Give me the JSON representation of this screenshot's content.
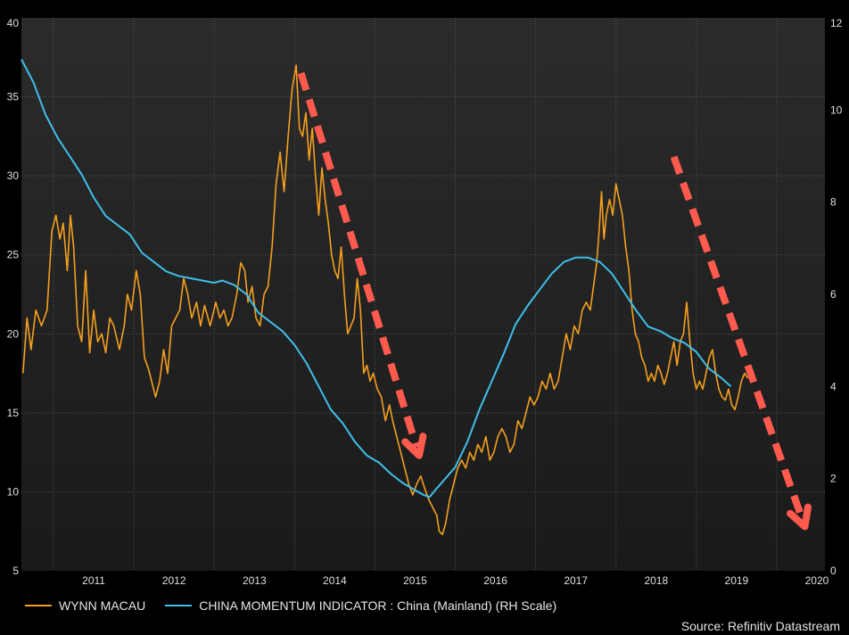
{
  "chart_data": {
    "type": "line",
    "title": "",
    "x_tick_labels": [
      "2011",
      "2012",
      "2013",
      "2014",
      "2015",
      "2016",
      "2017",
      "2018",
      "2019",
      "2020"
    ],
    "x_range": [
      2010.6,
      2020.6
    ],
    "y_left": {
      "range": [
        5,
        40
      ],
      "ticks": [
        "5",
        "10",
        "15",
        "20",
        "25",
        "30",
        "35",
        "40"
      ]
    },
    "y_right": {
      "range": [
        0,
        12
      ],
      "ticks": [
        "0",
        "2",
        "4",
        "6",
        "8",
        "10",
        "12"
      ]
    },
    "grid": true,
    "legend_position": "bottom-left",
    "series": [
      {
        "name": "WYNN MACAU",
        "axis": "left",
        "color": "#f5a01e",
        "points": [
          [
            2010.62,
            17.5
          ],
          [
            2010.67,
            21.0
          ],
          [
            2010.72,
            19.0
          ],
          [
            2010.78,
            21.5
          ],
          [
            2010.85,
            20.5
          ],
          [
            2010.92,
            21.5
          ],
          [
            2010.98,
            26.5
          ],
          [
            2011.03,
            27.5
          ],
          [
            2011.08,
            26.0
          ],
          [
            2011.12,
            27.0
          ],
          [
            2011.17,
            24.0
          ],
          [
            2011.21,
            27.5
          ],
          [
            2011.25,
            25.5
          ],
          [
            2011.3,
            20.5
          ],
          [
            2011.35,
            19.5
          ],
          [
            2011.4,
            24.0
          ],
          [
            2011.45,
            18.8
          ],
          [
            2011.5,
            21.5
          ],
          [
            2011.55,
            19.5
          ],
          [
            2011.6,
            20.0
          ],
          [
            2011.65,
            18.8
          ],
          [
            2011.7,
            21.0
          ],
          [
            2011.75,
            20.5
          ],
          [
            2011.82,
            19.0
          ],
          [
            2011.88,
            20.5
          ],
          [
            2011.92,
            22.5
          ],
          [
            2011.97,
            21.5
          ],
          [
            2012.03,
            24.0
          ],
          [
            2012.08,
            22.5
          ],
          [
            2012.13,
            18.5
          ],
          [
            2012.18,
            17.8
          ],
          [
            2012.22,
            17.0
          ],
          [
            2012.27,
            16.0
          ],
          [
            2012.32,
            17.0
          ],
          [
            2012.37,
            19.0
          ],
          [
            2012.42,
            17.5
          ],
          [
            2012.47,
            20.5
          ],
          [
            2012.52,
            21.0
          ],
          [
            2012.57,
            21.5
          ],
          [
            2012.62,
            23.5
          ],
          [
            2012.67,
            22.5
          ],
          [
            2012.72,
            21.0
          ],
          [
            2012.78,
            22.0
          ],
          [
            2012.83,
            20.5
          ],
          [
            2012.88,
            21.8
          ],
          [
            2012.95,
            20.5
          ],
          [
            2013.02,
            22.0
          ],
          [
            2013.07,
            21.0
          ],
          [
            2013.12,
            21.5
          ],
          [
            2013.17,
            20.5
          ],
          [
            2013.22,
            21.0
          ],
          [
            2013.28,
            22.5
          ],
          [
            2013.33,
            24.5
          ],
          [
            2013.38,
            24.0
          ],
          [
            2013.42,
            22.0
          ],
          [
            2013.47,
            23.0
          ],
          [
            2013.52,
            21.0
          ],
          [
            2013.57,
            20.5
          ],
          [
            2013.62,
            22.5
          ],
          [
            2013.67,
            23.0
          ],
          [
            2013.72,
            25.5
          ],
          [
            2013.77,
            29.5
          ],
          [
            2013.82,
            31.5
          ],
          [
            2013.87,
            29.0
          ],
          [
            2013.92,
            32.5
          ],
          [
            2013.97,
            35.5
          ],
          [
            2014.02,
            37.0
          ],
          [
            2014.06,
            33.0
          ],
          [
            2014.1,
            32.5
          ],
          [
            2014.14,
            34.0
          ],
          [
            2014.18,
            31.0
          ],
          [
            2014.22,
            33.0
          ],
          [
            2014.26,
            30.0
          ],
          [
            2014.3,
            27.5
          ],
          [
            2014.34,
            30.5
          ],
          [
            2014.38,
            28.5
          ],
          [
            2014.42,
            27.0
          ],
          [
            2014.46,
            25.0
          ],
          [
            2014.5,
            24.0
          ],
          [
            2014.54,
            23.5
          ],
          [
            2014.58,
            25.5
          ],
          [
            2014.62,
            22.5
          ],
          [
            2014.66,
            20.0
          ],
          [
            2014.7,
            20.5
          ],
          [
            2014.74,
            21.0
          ],
          [
            2014.78,
            23.5
          ],
          [
            2014.82,
            21.5
          ],
          [
            2014.86,
            17.5
          ],
          [
            2014.9,
            18.0
          ],
          [
            2014.94,
            17.0
          ],
          [
            2014.98,
            17.5
          ],
          [
            2015.03,
            16.5
          ],
          [
            2015.08,
            16.0
          ],
          [
            2015.13,
            14.5
          ],
          [
            2015.18,
            15.5
          ],
          [
            2015.22,
            14.5
          ],
          [
            2015.27,
            13.5
          ],
          [
            2015.32,
            12.5
          ],
          [
            2015.37,
            11.5
          ],
          [
            2015.42,
            10.5
          ],
          [
            2015.47,
            9.8
          ],
          [
            2015.52,
            10.5
          ],
          [
            2015.57,
            11.0
          ],
          [
            2015.62,
            10.2
          ],
          [
            2015.67,
            9.5
          ],
          [
            2015.72,
            9.0
          ],
          [
            2015.77,
            8.5
          ],
          [
            2015.8,
            7.5
          ],
          [
            2015.84,
            7.3
          ],
          [
            2015.88,
            8.0
          ],
          [
            2015.93,
            9.5
          ],
          [
            2015.98,
            10.5
          ],
          [
            2016.03,
            11.5
          ],
          [
            2016.08,
            12.0
          ],
          [
            2016.13,
            11.5
          ],
          [
            2016.18,
            12.5
          ],
          [
            2016.23,
            12.0
          ],
          [
            2016.28,
            13.0
          ],
          [
            2016.33,
            12.5
          ],
          [
            2016.38,
            13.5
          ],
          [
            2016.43,
            12.0
          ],
          [
            2016.48,
            12.5
          ],
          [
            2016.53,
            13.5
          ],
          [
            2016.58,
            14.0
          ],
          [
            2016.63,
            13.5
          ],
          [
            2016.68,
            12.5
          ],
          [
            2016.73,
            13.0
          ],
          [
            2016.78,
            14.5
          ],
          [
            2016.83,
            14.0
          ],
          [
            2016.88,
            15.0
          ],
          [
            2016.93,
            16.0
          ],
          [
            2016.98,
            15.5
          ],
          [
            2017.03,
            16.0
          ],
          [
            2017.08,
            17.0
          ],
          [
            2017.13,
            16.5
          ],
          [
            2017.18,
            17.5
          ],
          [
            2017.23,
            16.5
          ],
          [
            2017.28,
            17.0
          ],
          [
            2017.33,
            18.5
          ],
          [
            2017.38,
            20.0
          ],
          [
            2017.43,
            19.0
          ],
          [
            2017.48,
            20.5
          ],
          [
            2017.53,
            20.0
          ],
          [
            2017.58,
            21.5
          ],
          [
            2017.63,
            22.0
          ],
          [
            2017.68,
            21.5
          ],
          [
            2017.72,
            23.0
          ],
          [
            2017.76,
            24.5
          ],
          [
            2017.79,
            26.5
          ],
          [
            2017.82,
            29.0
          ],
          [
            2017.85,
            26.0
          ],
          [
            2017.88,
            27.5
          ],
          [
            2017.92,
            28.5
          ],
          [
            2017.96,
            27.5
          ],
          [
            2018.0,
            29.5
          ],
          [
            2018.04,
            28.5
          ],
          [
            2018.08,
            27.5
          ],
          [
            2018.12,
            25.5
          ],
          [
            2018.16,
            24.0
          ],
          [
            2018.2,
            21.5
          ],
          [
            2018.24,
            20.0
          ],
          [
            2018.28,
            19.5
          ],
          [
            2018.32,
            18.5
          ],
          [
            2018.36,
            18.0
          ],
          [
            2018.4,
            17.0
          ],
          [
            2018.44,
            17.5
          ],
          [
            2018.48,
            17.0
          ],
          [
            2018.52,
            18.0
          ],
          [
            2018.56,
            17.5
          ],
          [
            2018.6,
            16.8
          ],
          [
            2018.64,
            17.5
          ],
          [
            2018.68,
            18.5
          ],
          [
            2018.72,
            19.5
          ],
          [
            2018.76,
            18.0
          ],
          [
            2018.8,
            19.5
          ],
          [
            2018.84,
            20.0
          ],
          [
            2018.88,
            22.0
          ],
          [
            2018.92,
            19.5
          ],
          [
            2018.96,
            17.5
          ],
          [
            2019.0,
            16.5
          ],
          [
            2019.04,
            17.0
          ],
          [
            2019.08,
            16.5
          ],
          [
            2019.12,
            17.5
          ],
          [
            2019.16,
            18.5
          ],
          [
            2019.2,
            19.0
          ],
          [
            2019.24,
            17.5
          ],
          [
            2019.28,
            16.5
          ],
          [
            2019.32,
            16.0
          ],
          [
            2019.36,
            15.8
          ],
          [
            2019.4,
            16.5
          ],
          [
            2019.44,
            15.5
          ],
          [
            2019.48,
            15.2
          ],
          [
            2019.52,
            16.0
          ],
          [
            2019.56,
            17.0
          ],
          [
            2019.6,
            17.5
          ],
          [
            2019.64,
            17.2
          ]
        ]
      },
      {
        "name": "CHINA MOMENTUM INDICATOR : China (Mainland) (RH Scale)",
        "axis": "right",
        "color": "#3fbfea",
        "points": [
          [
            2010.6,
            11.1
          ],
          [
            2010.75,
            10.6
          ],
          [
            2010.9,
            9.9
          ],
          [
            2011.05,
            9.4
          ],
          [
            2011.2,
            9.0
          ],
          [
            2011.35,
            8.6
          ],
          [
            2011.5,
            8.1
          ],
          [
            2011.65,
            7.7
          ],
          [
            2011.8,
            7.5
          ],
          [
            2011.95,
            7.3
          ],
          [
            2012.1,
            6.9
          ],
          [
            2012.25,
            6.7
          ],
          [
            2012.4,
            6.5
          ],
          [
            2012.55,
            6.4
          ],
          [
            2012.7,
            6.35
          ],
          [
            2012.85,
            6.3
          ],
          [
            2013.0,
            6.25
          ],
          [
            2013.1,
            6.3
          ],
          [
            2013.25,
            6.2
          ],
          [
            2013.4,
            6.0
          ],
          [
            2013.55,
            5.6
          ],
          [
            2013.7,
            5.4
          ],
          [
            2013.85,
            5.2
          ],
          [
            2014.0,
            4.9
          ],
          [
            2014.15,
            4.5
          ],
          [
            2014.3,
            4.0
          ],
          [
            2014.45,
            3.5
          ],
          [
            2014.6,
            3.2
          ],
          [
            2014.75,
            2.8
          ],
          [
            2014.9,
            2.5
          ],
          [
            2015.05,
            2.35
          ],
          [
            2015.2,
            2.1
          ],
          [
            2015.35,
            1.9
          ],
          [
            2015.5,
            1.75
          ],
          [
            2015.6,
            1.65
          ],
          [
            2015.68,
            1.6
          ],
          [
            2015.75,
            1.75
          ],
          [
            2015.85,
            1.95
          ],
          [
            2016.0,
            2.25
          ],
          [
            2016.15,
            2.8
          ],
          [
            2016.3,
            3.5
          ],
          [
            2016.45,
            4.1
          ],
          [
            2016.6,
            4.7
          ],
          [
            2016.75,
            5.35
          ],
          [
            2016.9,
            5.75
          ],
          [
            2017.05,
            6.1
          ],
          [
            2017.2,
            6.45
          ],
          [
            2017.35,
            6.7
          ],
          [
            2017.5,
            6.8
          ],
          [
            2017.65,
            6.8
          ],
          [
            2017.8,
            6.7
          ],
          [
            2017.95,
            6.45
          ],
          [
            2018.1,
            6.05
          ],
          [
            2018.25,
            5.65
          ],
          [
            2018.4,
            5.3
          ],
          [
            2018.55,
            5.2
          ],
          [
            2018.7,
            5.05
          ],
          [
            2018.85,
            4.95
          ],
          [
            2019.0,
            4.75
          ],
          [
            2019.15,
            4.4
          ],
          [
            2019.3,
            4.2
          ],
          [
            2019.43,
            4.0
          ]
        ]
      }
    ],
    "annotations": [
      {
        "type": "dashed-arrow",
        "color": "#ff5a4e",
        "axis": "left",
        "from": [
          2014.08,
          36.5
        ],
        "to": [
          2015.55,
          12.3
        ]
      },
      {
        "type": "dashed-arrow",
        "color": "#ff5a4e",
        "axis": "left",
        "from": [
          2018.72,
          31.2
        ],
        "to": [
          2020.35,
          7.8
        ]
      }
    ]
  },
  "legend": {
    "item1_label": "WYNN MACAU",
    "item2_label": "CHINA MOMENTUM INDICATOR : China (Mainland) (RH Scale)"
  },
  "source_text": "Source: Refinitiv Datastream"
}
